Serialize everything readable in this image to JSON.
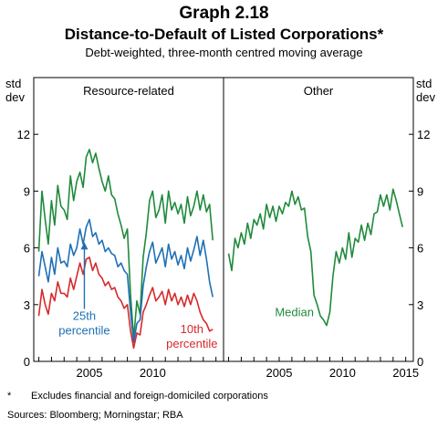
{
  "graph_number": "Graph 2.18",
  "title": "Distance-to-Default of Listed Corporations*",
  "subtitle": "Debt-weighted, three-month centred moving average",
  "footnote_marker": "*",
  "footnote": "Excludes financial and foreign-domiciled corporations",
  "sources": "Sources:  Bloomberg; Morningstar; RBA",
  "colors": {
    "green": "#1f8a3c",
    "blue": "#1f6fb5",
    "red": "#d6292b"
  },
  "chart_data": [
    {
      "type": "line",
      "panel_title": "Resource-related",
      "xlim": [
        2000.6,
        2015.6
      ],
      "ylim": [
        0,
        15
      ],
      "yticks": [
        0,
        3,
        6,
        9,
        12
      ],
      "xticks": [
        2005,
        2010
      ],
      "left_axis_label": [
        "std",
        "dev"
      ],
      "grid": false,
      "series": [
        {
          "name": "",
          "color_key": "green",
          "x": [
            2001.0,
            2001.25,
            2001.5,
            2001.75,
            2002.0,
            2002.25,
            2002.5,
            2002.75,
            2003.0,
            2003.25,
            2003.5,
            2003.75,
            2004.0,
            2004.25,
            2004.5,
            2004.75,
            2005.0,
            2005.25,
            2005.5,
            2005.75,
            2006.0,
            2006.25,
            2006.5,
            2006.75,
            2007.0,
            2007.25,
            2007.5,
            2007.75,
            2008.0,
            2008.25,
            2008.5,
            2008.75,
            2009.0,
            2009.25,
            2009.5,
            2009.75,
            2010.0,
            2010.25,
            2010.5,
            2010.75,
            2011.0,
            2011.25,
            2011.5,
            2011.75,
            2012.0,
            2012.25,
            2012.5,
            2012.75,
            2013.0,
            2013.25,
            2013.5,
            2013.75,
            2014.0,
            2014.25,
            2014.5,
            2014.75
          ],
          "y": [
            5.8,
            9.0,
            7.5,
            6.2,
            8.5,
            7.2,
            9.3,
            8.2,
            8.0,
            7.5,
            9.8,
            8.5,
            9.5,
            10.0,
            9.2,
            10.8,
            11.2,
            10.5,
            11.0,
            10.2,
            9.5,
            9.0,
            9.8,
            8.8,
            8.6,
            7.8,
            7.2,
            6.5,
            7.0,
            3.5,
            1.2,
            3.2,
            2.5,
            5.5,
            6.8,
            8.5,
            9.0,
            7.6,
            8.0,
            8.8,
            7.3,
            9.0,
            8.0,
            8.4,
            7.8,
            8.3,
            7.3,
            8.7,
            7.7,
            8.2,
            9.0,
            8.0,
            8.8,
            7.9,
            8.3,
            6.4
          ]
        },
        {
          "name": "25th percentile",
          "color_key": "blue",
          "x": [
            2001.0,
            2001.25,
            2001.5,
            2001.75,
            2002.0,
            2002.25,
            2002.5,
            2002.75,
            2003.0,
            2003.25,
            2003.5,
            2003.75,
            2004.0,
            2004.25,
            2004.5,
            2004.75,
            2005.0,
            2005.25,
            2005.5,
            2005.75,
            2006.0,
            2006.25,
            2006.5,
            2006.75,
            2007.0,
            2007.25,
            2007.5,
            2007.75,
            2008.0,
            2008.25,
            2008.5,
            2008.75,
            2009.0,
            2009.25,
            2009.5,
            2009.75,
            2010.0,
            2010.25,
            2010.5,
            2010.75,
            2011.0,
            2011.25,
            2011.5,
            2011.75,
            2012.0,
            2012.25,
            2012.5,
            2012.75,
            2013.0,
            2013.25,
            2013.5,
            2013.75,
            2014.0,
            2014.25,
            2014.5,
            2014.75
          ],
          "y": [
            4.5,
            5.8,
            5.0,
            4.2,
            5.5,
            4.6,
            6.0,
            5.2,
            5.3,
            5.0,
            6.2,
            5.6,
            6.0,
            7.0,
            6.2,
            7.1,
            7.5,
            6.6,
            6.8,
            6.2,
            6.4,
            5.8,
            6.0,
            5.7,
            5.6,
            5.0,
            5.2,
            4.8,
            4.6,
            2.6,
            1.0,
            2.0,
            2.2,
            4.0,
            5.0,
            5.8,
            6.3,
            5.2,
            5.6,
            6.0,
            5.0,
            6.2,
            5.4,
            5.8,
            5.1,
            5.6,
            4.9,
            6.0,
            5.3,
            5.9,
            6.6,
            5.6,
            6.4,
            5.4,
            4.2,
            3.4
          ]
        },
        {
          "name": "10th percentile",
          "color_key": "red",
          "x": [
            2001.0,
            2001.25,
            2001.5,
            2001.75,
            2002.0,
            2002.25,
            2002.5,
            2002.75,
            2003.0,
            2003.25,
            2003.5,
            2003.75,
            2004.0,
            2004.25,
            2004.5,
            2004.75,
            2005.0,
            2005.25,
            2005.5,
            2005.75,
            2006.0,
            2006.25,
            2006.5,
            2006.75,
            2007.0,
            2007.25,
            2007.5,
            2007.75,
            2008.0,
            2008.25,
            2008.5,
            2008.75,
            2009.0,
            2009.25,
            2009.5,
            2009.75,
            2010.0,
            2010.25,
            2010.5,
            2010.75,
            2011.0,
            2011.25,
            2011.5,
            2011.75,
            2012.0,
            2012.25,
            2012.5,
            2012.75,
            2013.0,
            2013.25,
            2013.5,
            2013.75,
            2014.0,
            2014.25,
            2014.5,
            2014.75
          ],
          "y": [
            2.4,
            3.8,
            3.0,
            2.5,
            3.6,
            3.2,
            4.2,
            3.6,
            3.6,
            3.4,
            4.4,
            3.8,
            4.5,
            5.2,
            4.6,
            5.4,
            5.5,
            4.8,
            5.2,
            4.6,
            4.4,
            4.0,
            4.2,
            3.8,
            3.9,
            3.4,
            3.2,
            2.8,
            3.0,
            1.6,
            0.7,
            1.5,
            1.4,
            2.6,
            3.0,
            3.5,
            3.9,
            3.2,
            3.4,
            3.7,
            3.0,
            3.8,
            3.2,
            3.6,
            3.0,
            3.4,
            2.9,
            3.5,
            3.0,
            3.6,
            3.2,
            2.6,
            2.2,
            2.0,
            1.6,
            1.7
          ]
        }
      ],
      "annotations": [
        {
          "lines": [
            "25th",
            "percentile"
          ],
          "color_key": "blue",
          "x": 2004.6,
          "y": 2.0,
          "arrow_to": [
            2004.6,
            6.3
          ]
        },
        {
          "lines": [
            "10th",
            "percentile"
          ],
          "color_key": "red",
          "x": 2013.1,
          "y": 1.3
        }
      ]
    },
    {
      "type": "line",
      "panel_title": "Other",
      "xlim": [
        2000.6,
        2015.6
      ],
      "ylim": [
        0,
        15
      ],
      "yticks": [
        0,
        3,
        6,
        9,
        12
      ],
      "xticks": [
        2005,
        2010,
        2015
      ],
      "right_axis_label": [
        "std",
        "dev"
      ],
      "grid": false,
      "series": [
        {
          "name": "Median",
          "color_key": "green",
          "x": [
            2001.0,
            2001.25,
            2001.5,
            2001.75,
            2002.0,
            2002.25,
            2002.5,
            2002.75,
            2003.0,
            2003.25,
            2003.5,
            2003.75,
            2004.0,
            2004.25,
            2004.5,
            2004.75,
            2005.0,
            2005.25,
            2005.5,
            2005.75,
            2006.0,
            2006.25,
            2006.5,
            2006.75,
            2007.0,
            2007.25,
            2007.5,
            2007.75,
            2008.0,
            2008.25,
            2008.5,
            2008.75,
            2009.0,
            2009.25,
            2009.5,
            2009.75,
            2010.0,
            2010.25,
            2010.5,
            2010.75,
            2011.0,
            2011.25,
            2011.5,
            2011.75,
            2012.0,
            2012.25,
            2012.5,
            2012.75,
            2013.0,
            2013.25,
            2013.5,
            2013.75,
            2014.0,
            2014.25,
            2014.5,
            2014.75
          ],
          "y": [
            5.7,
            4.8,
            6.5,
            6.0,
            6.8,
            6.2,
            7.3,
            6.5,
            7.5,
            7.2,
            7.8,
            7.0,
            8.3,
            7.6,
            8.2,
            7.4,
            8.2,
            7.8,
            8.4,
            8.2,
            9.0,
            8.3,
            8.7,
            8.0,
            8.1,
            6.6,
            5.8,
            3.5,
            3.0,
            2.4,
            2.2,
            1.9,
            2.6,
            4.5,
            5.8,
            5.2,
            6.0,
            5.4,
            6.8,
            5.5,
            6.5,
            6.3,
            7.2,
            6.4,
            7.3,
            6.7,
            7.8,
            7.9,
            8.8,
            8.2,
            8.8,
            8.0,
            9.1,
            8.5,
            7.8,
            7.1
          ]
        }
      ],
      "annotations": [
        {
          "lines": [
            "Median"
          ],
          "color_key": "green",
          "x": 2006.2,
          "y": 2.2
        }
      ]
    }
  ]
}
